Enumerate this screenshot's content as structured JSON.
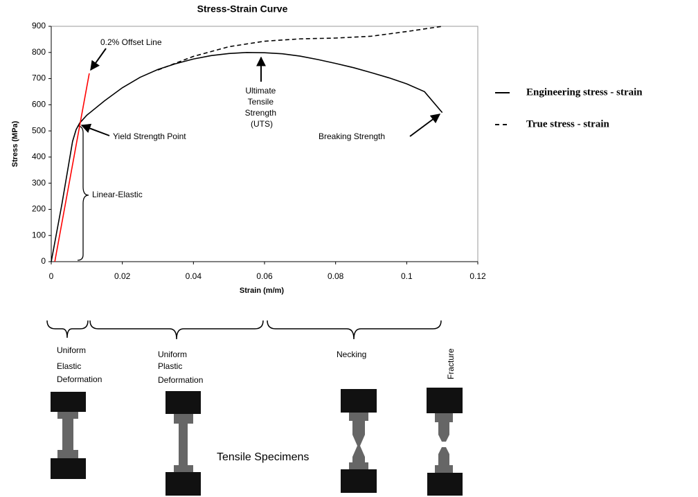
{
  "chart_data": {
    "type": "line",
    "title": "Stress-Strain Curve",
    "xlabel": "Strain (m/m)",
    "ylabel": "Stress (MPa)",
    "xlim": [
      0,
      0.12
    ],
    "ylim": [
      0,
      900
    ],
    "xticks": [
      0,
      0.02,
      0.04,
      0.06,
      0.08,
      0.1,
      0.12
    ],
    "yticks": [
      0,
      100,
      200,
      300,
      400,
      500,
      600,
      700,
      800,
      900
    ],
    "legend": "right",
    "series": [
      {
        "name": "Engineering stress - strain",
        "color": "#000000",
        "style": "solid",
        "x": [
          0,
          0.003,
          0.006,
          0.007,
          0.008,
          0.01,
          0.015,
          0.02,
          0.025,
          0.03,
          0.035,
          0.04,
          0.045,
          0.05,
          0.055,
          0.06,
          0.065,
          0.07,
          0.075,
          0.08,
          0.085,
          0.09,
          0.095,
          0.1,
          0.105,
          0.11
        ],
        "values": [
          0,
          220,
          460,
          505,
          530,
          560,
          615,
          665,
          705,
          735,
          757,
          775,
          788,
          796,
          800,
          799,
          795,
          786,
          773,
          758,
          742,
          723,
          703,
          680,
          650,
          570
        ]
      },
      {
        "name": "True stress - strain",
        "color": "#000000",
        "style": "dashed",
        "x": [
          0.03,
          0.04,
          0.05,
          0.06,
          0.07,
          0.08,
          0.09,
          0.1,
          0.11
        ],
        "values": [
          733,
          785,
          822,
          843,
          852,
          855,
          862,
          880,
          900
        ]
      }
    ],
    "offset_line": {
      "label": "0.2% Offset Line",
      "color": "#ff0000",
      "x": [
        0.001,
        0.0107
      ],
      "values": [
        0,
        720
      ]
    },
    "annotations": {
      "yield": "Yield Strength Point",
      "elastic": "Linear-Elastic",
      "uts": [
        "Ultimate",
        "Tensile",
        "Strength",
        "(UTS)"
      ],
      "breaking": "Breaking Strength"
    }
  },
  "stages": {
    "labels": [
      [
        "Uniform",
        "Elastic",
        "Deformation"
      ],
      [
        "Uniform",
        "Plastic",
        "Deformation"
      ],
      [
        "Necking"
      ],
      [
        "Fracture"
      ]
    ],
    "caption": "Tensile Specimens"
  }
}
